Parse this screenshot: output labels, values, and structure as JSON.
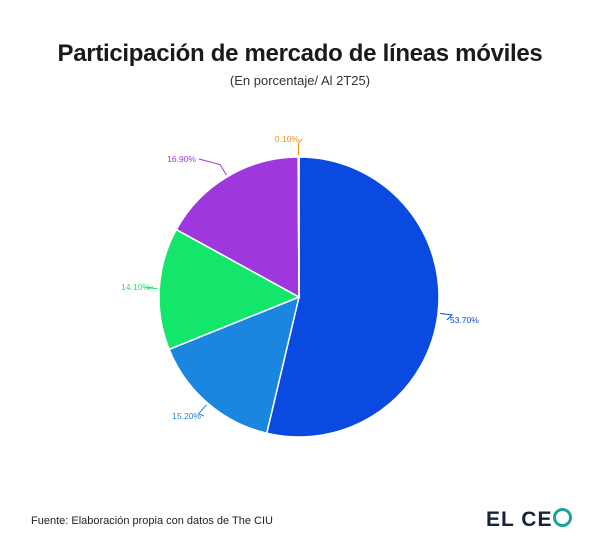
{
  "header": {
    "title": "Participación de mercado de líneas móviles",
    "subtitle": "(En porcentaje/ Al 2T25)"
  },
  "footer": {
    "source": "Fuente: Elaboración propia con datos de The CIU",
    "logo_prefix": "EL CE",
    "logo_full": "EL CEO"
  },
  "chart_data": {
    "type": "pie",
    "title": "Participación de mercado de líneas móviles",
    "subtitle": "(En porcentaje/ Al 2T25)",
    "start_angle_deg": 0,
    "direction": "clockwise",
    "slices": [
      {
        "label": "53.70%",
        "value": 53.7,
        "color": "#0a4ae0"
      },
      {
        "label": "15.20%",
        "value": 15.2,
        "color": "#1a86e0"
      },
      {
        "label": "14.10%",
        "value": 14.1,
        "color": "#14e66c"
      },
      {
        "label": "16.90%",
        "value": 16.9,
        "color": "#9e37dc"
      },
      {
        "label": "0.10%",
        "value": 0.1,
        "color": "#f0900c"
      }
    ]
  }
}
